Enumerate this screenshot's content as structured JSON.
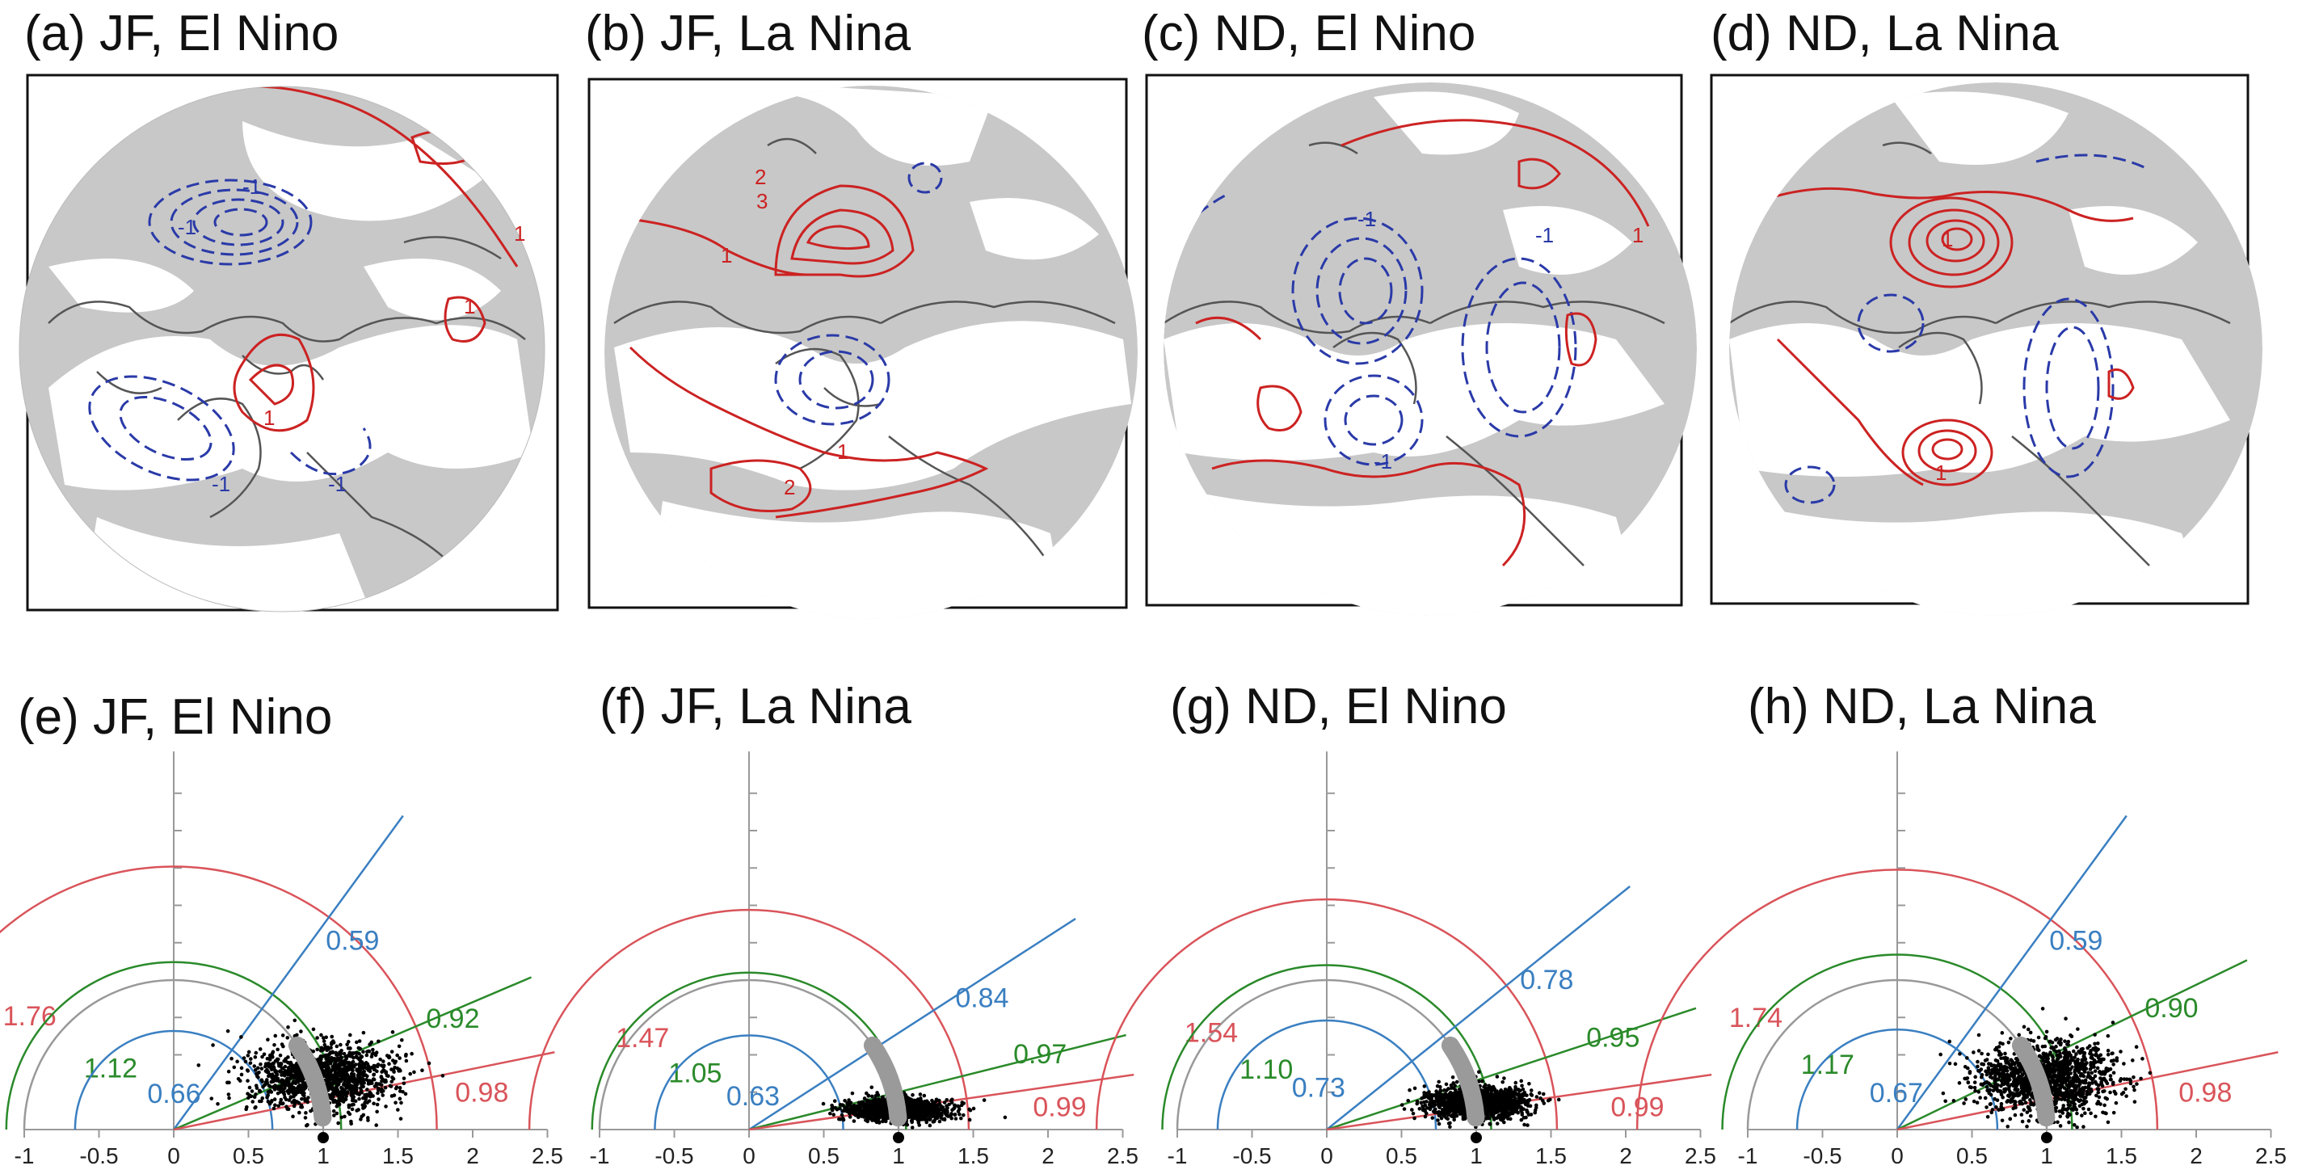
{
  "figure": {
    "map_panels": [
      {
        "id": "a",
        "title": "(a) JF, El Nino",
        "contour_labels_red": [
          "1",
          "1",
          "1"
        ],
        "contour_labels_blue": [
          "-1",
          "-1",
          "-1",
          "-1"
        ]
      },
      {
        "id": "b",
        "title": "(b) JF, La Nina",
        "contour_labels_red": [
          "2",
          "3",
          "1",
          "2",
          "1"
        ],
        "contour_labels_blue": []
      },
      {
        "id": "c",
        "title": "(c) ND, El Nino",
        "contour_labels_red": [
          "1"
        ],
        "contour_labels_blue": [
          "-1",
          "-1",
          "-1"
        ]
      },
      {
        "id": "d",
        "title": "(d) ND, La Nina",
        "contour_labels_red": [
          "1",
          "1"
        ],
        "contour_labels_blue": []
      }
    ],
    "colors": {
      "positive": "#cc2222",
      "negative": "#2a3aa8",
      "shading": "#c8c8c8",
      "coast": "#555555",
      "blue_line": "#3a7fc1",
      "green_line": "#2a8a2a",
      "red_line": "#d9545a",
      "gray_line": "#999999",
      "dots": "#000000"
    }
  },
  "chart_data": [
    {
      "type": "scatter",
      "title": "(e) JF, El Nino",
      "xlim": [
        -1,
        2.5
      ],
      "x_ticks": [
        "-1",
        "-0.5",
        "0",
        "0.5",
        "1",
        "1.5",
        "2",
        "2.5"
      ],
      "arcs": [
        {
          "value": 1.76,
          "label": "1.76",
          "color": "red"
        },
        {
          "value": 1.12,
          "label": "1.12",
          "color": "green"
        },
        {
          "value": 0.66,
          "label": "0.66",
          "color": "blue"
        }
      ],
      "rays": [
        {
          "value": 0.59,
          "label": "0.59",
          "color": "blue"
        },
        {
          "value": 0.92,
          "label": "0.92",
          "color": "green"
        },
        {
          "value": 0.98,
          "label": "0.98",
          "color": "red"
        }
      ],
      "cloud": {
        "center_x": 1.0,
        "center_y": 0.35,
        "spread_x": 0.42,
        "spread_y": 0.2
      }
    },
    {
      "type": "scatter",
      "title": "(f) JF, La Nina",
      "xlim": [
        -1,
        2.5
      ],
      "x_ticks": [
        "-1",
        "-0.5",
        "0",
        "0.5",
        "1",
        "1.5",
        "2",
        "2.5"
      ],
      "arcs": [
        {
          "value": 1.47,
          "label": "1.47",
          "color": "red"
        },
        {
          "value": 1.05,
          "label": "1.05",
          "color": "green"
        },
        {
          "value": 0.63,
          "label": "0.63",
          "color": "blue"
        }
      ],
      "rays": [
        {
          "value": 0.84,
          "label": "0.84",
          "color": "blue"
        },
        {
          "value": 0.97,
          "label": "0.97",
          "color": "green"
        },
        {
          "value": 0.99,
          "label": "0.99",
          "color": "red"
        }
      ],
      "cloud": {
        "center_x": 1.0,
        "center_y": 0.13,
        "spread_x": 0.3,
        "spread_y": 0.07
      }
    },
    {
      "type": "scatter",
      "title": "(g) ND, El Nino",
      "xlim": [
        -1,
        2.5
      ],
      "x_ticks": [
        "-1",
        "-0.5",
        "0",
        "0.5",
        "1",
        "1.5",
        "2",
        "2.5"
      ],
      "arcs": [
        {
          "value": 1.54,
          "label": "1.54",
          "color": "red"
        },
        {
          "value": 1.1,
          "label": "1.10",
          "color": "green"
        },
        {
          "value": 0.73,
          "label": "0.73",
          "color": "blue"
        }
      ],
      "rays": [
        {
          "value": 0.78,
          "label": "0.78",
          "color": "blue"
        },
        {
          "value": 0.95,
          "label": "0.95",
          "color": "green"
        },
        {
          "value": 0.99,
          "label": "0.99",
          "color": "red"
        }
      ],
      "cloud": {
        "center_x": 1.0,
        "center_y": 0.18,
        "spread_x": 0.3,
        "spread_y": 0.1
      }
    },
    {
      "type": "scatter",
      "title": "(h) ND, La Nina",
      "xlim": [
        -1,
        2.5
      ],
      "x_ticks": [
        "-1",
        "-0.5",
        "0",
        "0.5",
        "1",
        "1.5",
        "2",
        "2.5"
      ],
      "arcs": [
        {
          "value": 1.74,
          "label": "1.74",
          "color": "red"
        },
        {
          "value": 1.17,
          "label": "1.17",
          "color": "green"
        },
        {
          "value": 0.67,
          "label": "0.67",
          "color": "blue"
        }
      ],
      "rays": [
        {
          "value": 0.59,
          "label": "0.59",
          "color": "blue"
        },
        {
          "value": 0.9,
          "label": "0.90",
          "color": "green"
        },
        {
          "value": 0.98,
          "label": "0.98",
          "color": "red"
        }
      ],
      "cloud": {
        "center_x": 1.0,
        "center_y": 0.35,
        "spread_x": 0.42,
        "spread_y": 0.22
      }
    }
  ]
}
